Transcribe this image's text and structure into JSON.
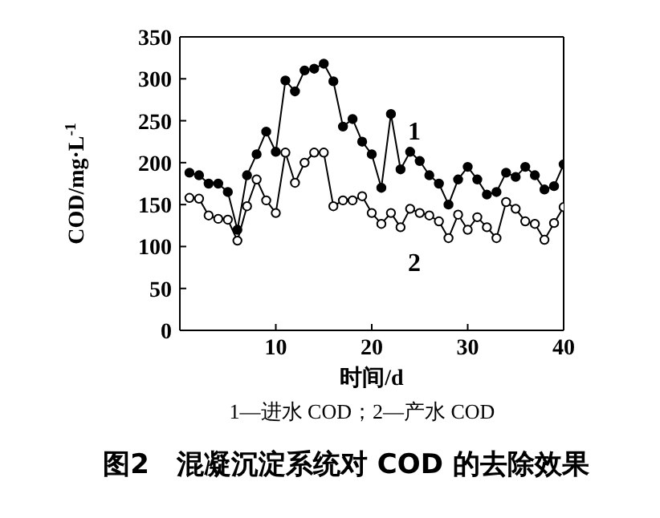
{
  "chart_data": {
    "type": "line",
    "title": "图2　混凝沉淀系统对 COD 的去除效果",
    "xlabel": "时间/d",
    "ylabel": "COD/mg·L$^{-1}$",
    "x": [
      1,
      2,
      3,
      4,
      5,
      6,
      7,
      8,
      9,
      10,
      11,
      12,
      13,
      14,
      15,
      16,
      17,
      18,
      19,
      20,
      21,
      22,
      23,
      24,
      25,
      26,
      27,
      28,
      29,
      30,
      31,
      32,
      33,
      34,
      35,
      36,
      37,
      38,
      39,
      40
    ],
    "series": [
      {
        "color": "#000000",
        "values": [
          188,
          185,
          175,
          175,
          165,
          120,
          185,
          210,
          237,
          213,
          298,
          285,
          310,
          312,
          318,
          297,
          243,
          252,
          225,
          210,
          170,
          258,
          192,
          213,
          202,
          185,
          175,
          150,
          180,
          195,
          180,
          162,
          165,
          188,
          183,
          195,
          185,
          168,
          172,
          198
        ]
      },
      {
        "color": "#000000",
        "values": [
          158,
          157,
          137,
          133,
          132,
          107,
          148,
          180,
          155,
          140,
          212,
          176,
          200,
          212,
          212,
          148,
          155,
          155,
          160,
          140,
          127,
          140,
          123,
          145,
          140,
          137,
          130,
          110,
          138,
          120,
          135,
          123,
          110,
          153,
          145,
          130,
          127,
          108,
          128,
          147
        ]
      }
    ],
    "xlim": [
      0,
      40
    ],
    "xticks": [
      10,
      20,
      30,
      40
    ],
    "ylim": [
      0,
      350
    ],
    "yticks": [
      0,
      50,
      100,
      150,
      200,
      250,
      300,
      350
    ],
    "marker": "circle",
    "line_style": "solid",
    "grid": false,
    "legend": false,
    "annotations": [
      "1",
      "2",
      "1—进水 COD；2—产水 COD"
    ]
  }
}
